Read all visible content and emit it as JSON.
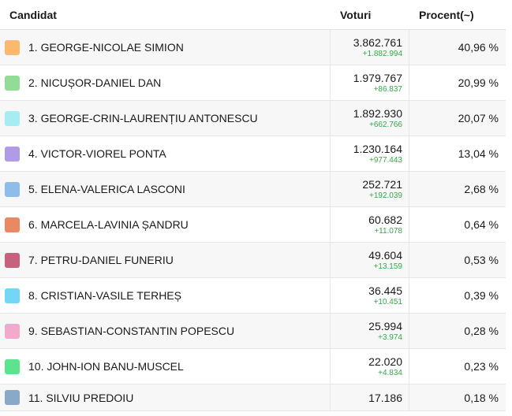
{
  "header": {
    "candidate": "Candidat",
    "votes": "Voturi",
    "percent": "Procent(~)"
  },
  "rows": [
    {
      "name": "1. GEORGE-NICOLAE SIMION",
      "votes": "3.862.761",
      "delta": "+1.882.994",
      "percent": "40,96 %",
      "color": "#fbb96b"
    },
    {
      "name": "2. NICUȘOR-DANIEL DAN",
      "votes": "1.979.767",
      "delta": "+86.837",
      "percent": "20,99 %",
      "color": "#93dc97"
    },
    {
      "name": "3. GEORGE-CRIN-LAURENȚIU ANTONESCU",
      "votes": "1.892.930",
      "delta": "+662.766",
      "percent": "20,07 %",
      "color": "#a5ecf3"
    },
    {
      "name": "4. VICTOR-VIOREL PONTA",
      "votes": "1.230.164",
      "delta": "+977.443",
      "percent": "13,04 %",
      "color": "#b29be6"
    },
    {
      "name": "5. ELENA-VALERICA LASCONI",
      "votes": "252.721",
      "delta": "+192.039",
      "percent": "2,68 %",
      "color": "#8fbde9"
    },
    {
      "name": "6. MARCELA-LAVINIA ȘANDRU",
      "votes": "60.682",
      "delta": "+11.078",
      "percent": "0,64 %",
      "color": "#e88865"
    },
    {
      "name": "7. PETRU-DANIEL FUNERIU",
      "votes": "49.604",
      "delta": "+13.159",
      "percent": "0,53 %",
      "color": "#c6627d"
    },
    {
      "name": "8. CRISTIAN-VASILE TERHEȘ",
      "votes": "36.445",
      "delta": "+10.451",
      "percent": "0,39 %",
      "color": "#74d6f7"
    },
    {
      "name": "9. SEBASTIAN-CONSTANTIN POPESCU",
      "votes": "25.994",
      "delta": "+3.974",
      "percent": "0,28 %",
      "color": "#f2a9cb"
    },
    {
      "name": "10. JOHN-ION BANU-MUSCEL",
      "votes": "22.020",
      "delta": "+4.834",
      "percent": "0,23 %",
      "color": "#5de28d"
    },
    {
      "name": "11. SILVIU PREDOIU",
      "votes": "17.186",
      "delta": "",
      "percent": "0,18 %",
      "color": "#8aa8c8"
    }
  ]
}
